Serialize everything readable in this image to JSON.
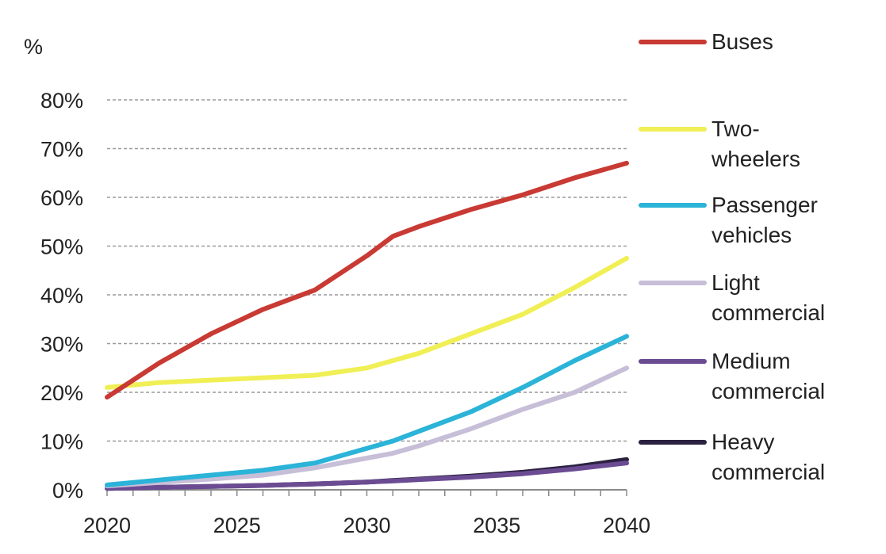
{
  "chart_data": {
    "type": "line",
    "y_unit_label": "%",
    "x_ticks": [
      "2020",
      "2025",
      "2030",
      "2035",
      "2040"
    ],
    "y_ticks": [
      "0%",
      "10%",
      "20%",
      "30%",
      "40%",
      "50%",
      "60%",
      "70%",
      "80%"
    ],
    "xlim": [
      2020,
      2040
    ],
    "ylim": [
      0,
      80
    ],
    "y_tick_values": [
      0,
      10,
      20,
      30,
      40,
      50,
      60,
      70,
      80
    ],
    "x_tick_values": [
      2020,
      2025,
      2030,
      2035,
      2040
    ],
    "grid": "horizontal dashed",
    "legend_placement": "right",
    "x": [
      2020,
      2022,
      2024,
      2026,
      2028,
      2030,
      2031,
      2032,
      2034,
      2036,
      2038,
      2040
    ],
    "series": [
      {
        "name": "Buses",
        "label_lines": [
          "Buses"
        ],
        "color": "#c83a33",
        "values": [
          19,
          26,
          32,
          37,
          41,
          48,
          52,
          54,
          57.5,
          60.5,
          64,
          67
        ]
      },
      {
        "name": "Two-wheelers",
        "label_lines": [
          "Two-",
          "wheelers"
        ],
        "color": "#f0ef55",
        "values": [
          21,
          22,
          22.5,
          23,
          23.5,
          25,
          26.5,
          28,
          32,
          36,
          41.5,
          47.5
        ]
      },
      {
        "name": "Passenger vehicles",
        "label_lines": [
          "Passenger",
          "vehicles"
        ],
        "color": "#2bb3d8",
        "values": [
          1,
          2,
          3,
          4,
          5.5,
          8.5,
          10,
          12,
          16,
          21,
          26.5,
          31.5
        ]
      },
      {
        "name": "Light commercial",
        "label_lines": [
          "Light",
          "commercial"
        ],
        "color": "#c7bed8",
        "values": [
          0.8,
          1.5,
          2.2,
          3,
          4.5,
          6.5,
          7.5,
          9,
          12.5,
          16.5,
          20,
          25
        ]
      },
      {
        "name": "Medium commercial",
        "label_lines": [
          "Medium",
          "commercial"
        ],
        "color": "#6b4c93",
        "values": [
          0.3,
          0.5,
          0.7,
          0.9,
          1.2,
          1.6,
          1.8,
          2.1,
          2.6,
          3.3,
          4.3,
          5.5
        ]
      },
      {
        "name": "Heavy commercial",
        "label_lines": [
          "Heavy",
          "commercial"
        ],
        "color": "#2c2140",
        "values": [
          0.3,
          0.5,
          0.7,
          0.9,
          1.2,
          1.6,
          1.9,
          2.2,
          2.8,
          3.6,
          4.7,
          6.2
        ]
      }
    ]
  }
}
